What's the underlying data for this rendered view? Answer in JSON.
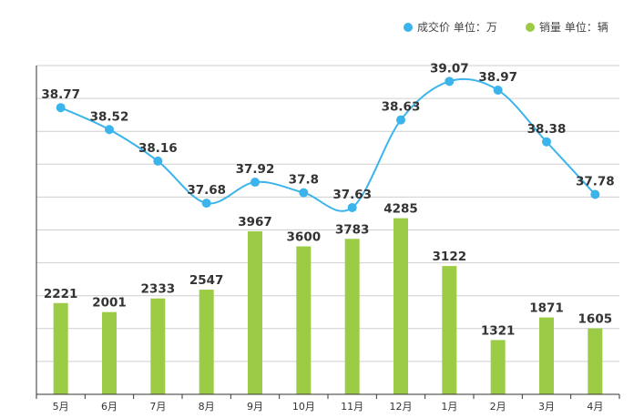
{
  "legend": {
    "price": "成交价  单位：万",
    "sales": "销量  单位：辆"
  },
  "colors": {
    "price": "#3bb4ec",
    "sales": "#9ccc45",
    "grid": "#cfcfcf",
    "axis": "#333333",
    "label": "#333333"
  },
  "chart_data": {
    "type": "bar+line",
    "categories": [
      "5月",
      "6月",
      "7月",
      "8月",
      "9月",
      "10月",
      "11月",
      "12月",
      "1月",
      "2月",
      "3月",
      "4月"
    ],
    "series": [
      {
        "name": "成交价",
        "unit": "万",
        "type": "line",
        "smooth": true,
        "values": [
          38.77,
          38.52,
          38.16,
          37.68,
          37.92,
          37.8,
          37.63,
          38.63,
          39.07,
          38.97,
          38.38,
          37.78
        ],
        "labels": [
          "38.77",
          "38.52",
          "38.16",
          "37.68",
          "37.92",
          "37.8",
          "37.63",
          "38.63",
          "39.07",
          "38.97",
          "38.38",
          "37.78"
        ]
      },
      {
        "name": "销量",
        "unit": "辆",
        "type": "bar",
        "values": [
          2221,
          2001,
          2333,
          2547,
          3967,
          3600,
          3783,
          4285,
          3122,
          1321,
          1871,
          1605
        ],
        "labels": [
          "2221",
          "2001",
          "2333",
          "2547",
          "3967",
          "3600",
          "3783",
          "4285",
          "3122",
          "1321",
          "1871",
          "1605"
        ]
      }
    ],
    "price_axis_range": [
      35.5,
      39.25
    ],
    "sales_axis_range": [
      0,
      8000
    ],
    "grid": true,
    "legend_position": "top-right"
  }
}
